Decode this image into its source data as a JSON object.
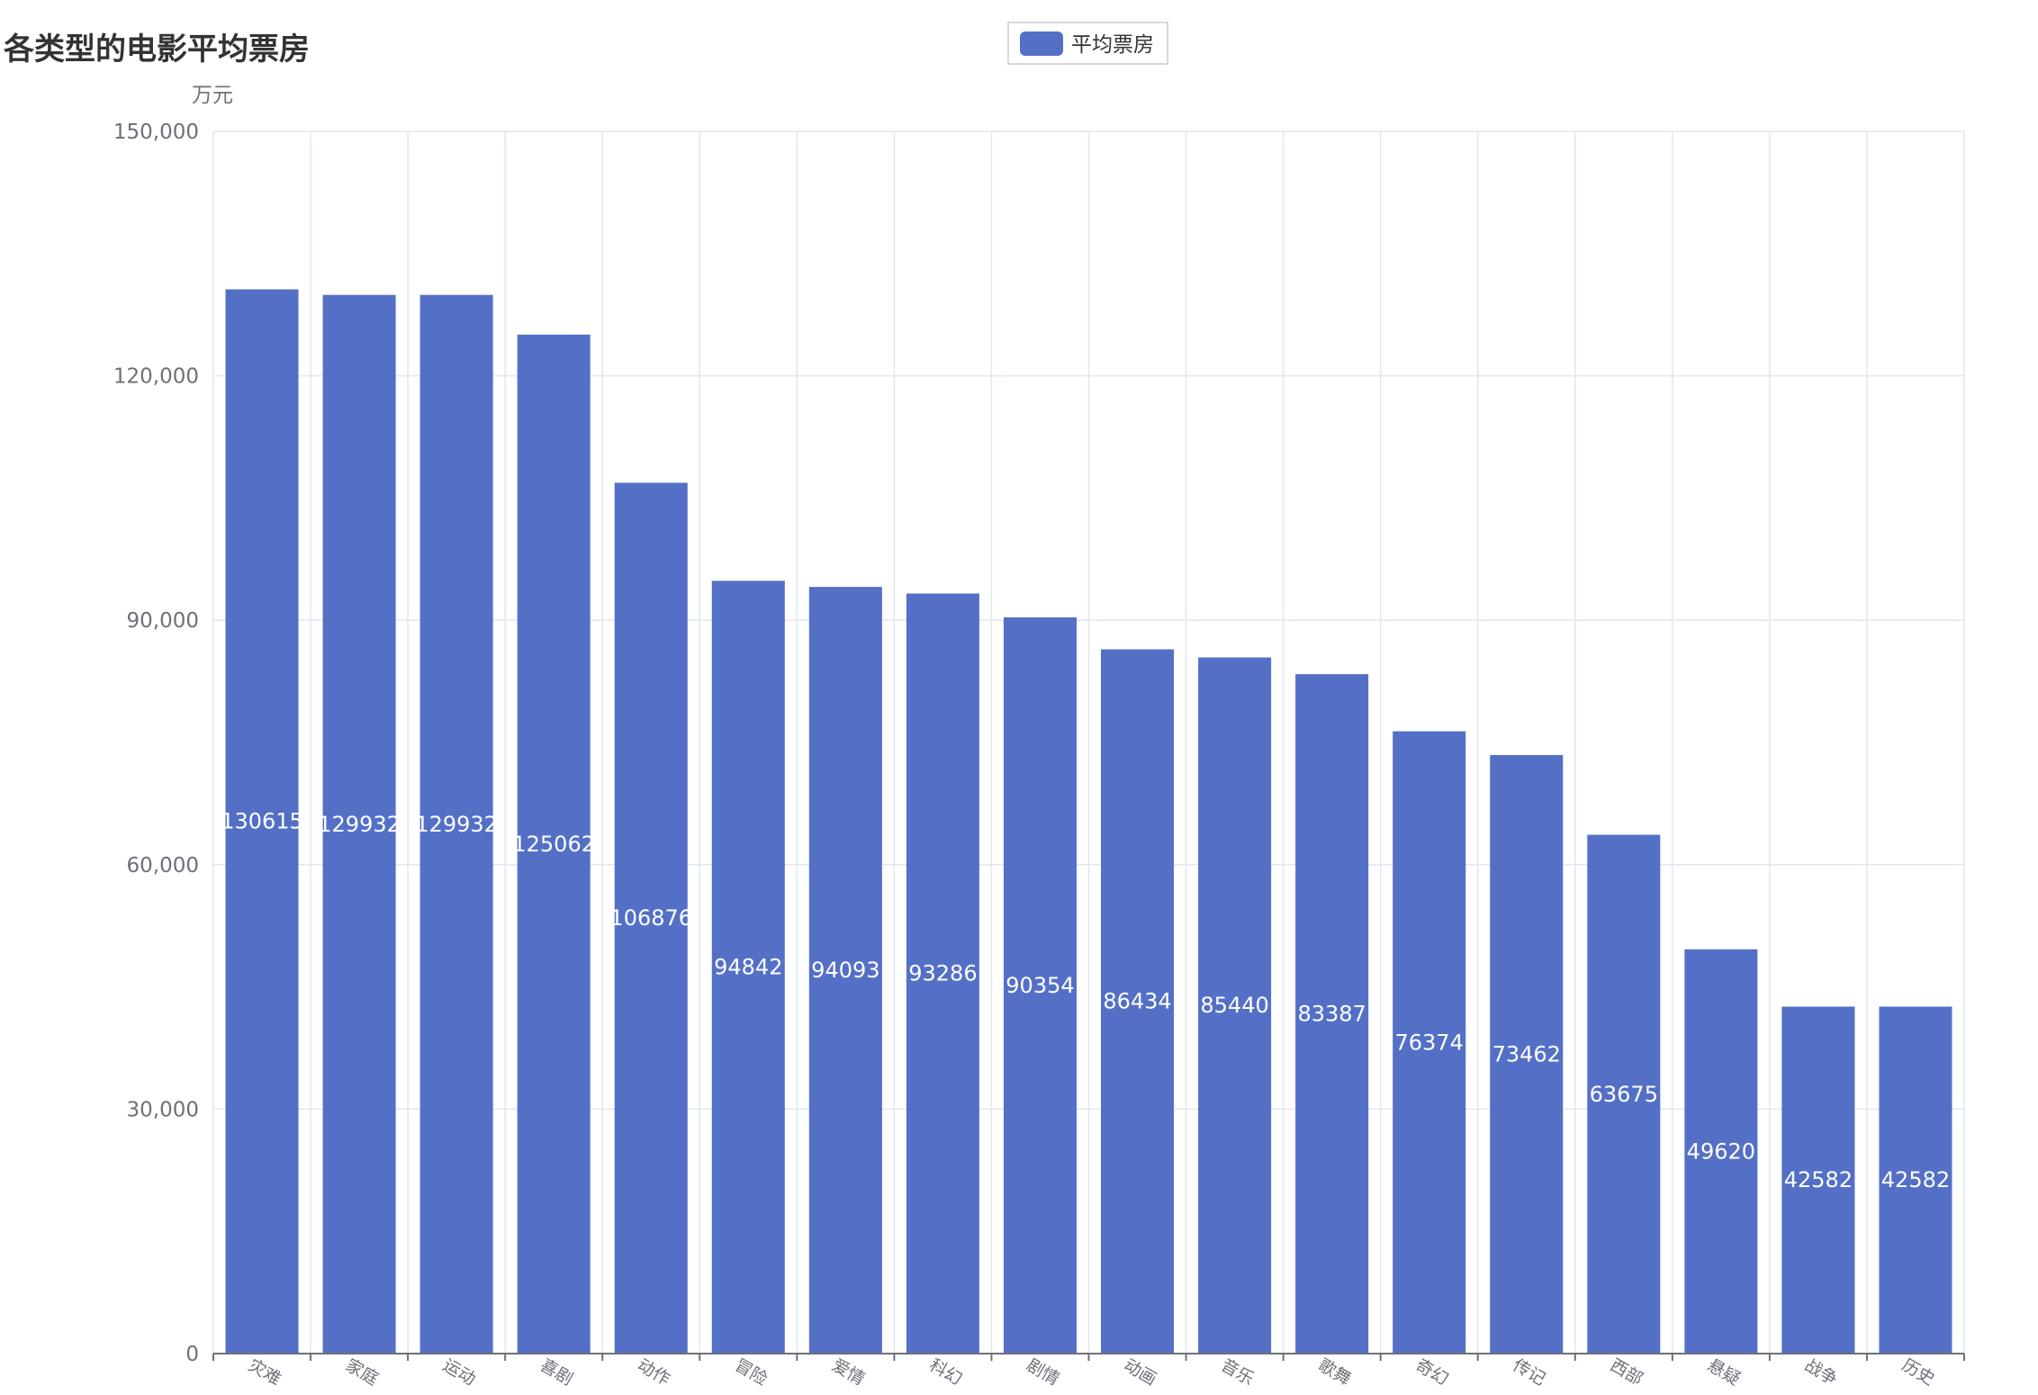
{
  "chart_data": {
    "type": "bar",
    "title": "各类型的电影平均票房",
    "ylabel": "万元",
    "xlabel": "",
    "legend": {
      "label": "平均票房",
      "position": "top-center"
    },
    "categories": [
      "灾难",
      "家庭",
      "运动",
      "喜剧",
      "动作",
      "冒险",
      "爱情",
      "科幻",
      "剧情",
      "动画",
      "音乐",
      "歌舞",
      "奇幻",
      "传记",
      "西部",
      "悬疑",
      "战争",
      "历史"
    ],
    "series": [
      {
        "name": "平均票房",
        "values": [
          130615,
          129932,
          129932,
          125062,
          106876,
          94842,
          94093,
          93286,
          90354,
          86434,
          85440,
          83387,
          76374,
          73462,
          63675,
          49620,
          42582,
          42582
        ]
      }
    ],
    "ylim": [
      0,
      150000
    ],
    "yticks": [
      0,
      30000,
      60000,
      90000,
      120000,
      150000
    ],
    "ytick_labels": [
      "0",
      "30,000",
      "60,000",
      "90,000",
      "120,000",
      "150,000"
    ],
    "grid": true,
    "colors": {
      "bar": "#5470c6",
      "grid": "#e0e6f1",
      "axis": "#6e7079",
      "label": "#ffffff",
      "title": "#333333"
    }
  }
}
